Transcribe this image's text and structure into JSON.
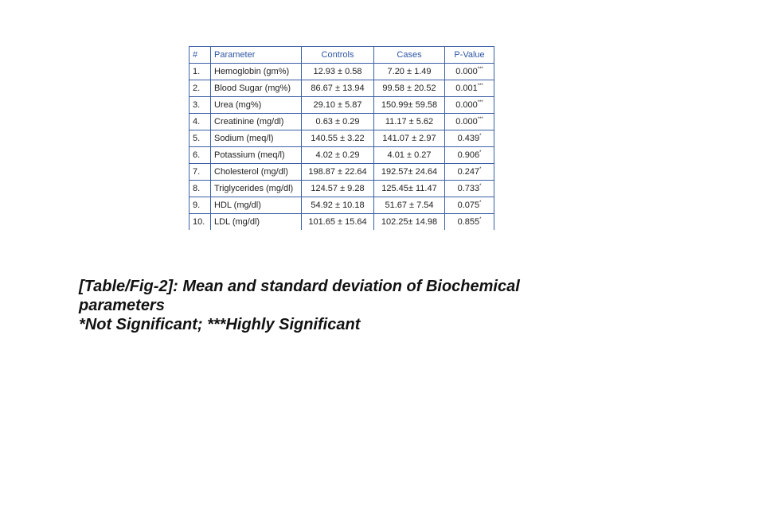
{
  "table": {
    "headers": [
      "#",
      "Parameter",
      "Controls",
      "Cases",
      "P-Value"
    ],
    "rows": [
      {
        "n": "1.",
        "param": "Hemoglobin (gm%)",
        "controls": "12.93 ± 0.58",
        "cases": "7.20 ± 1.49",
        "p": "0.000",
        "sig": "***"
      },
      {
        "n": "2.",
        "param": "Blood Sugar (mg%)",
        "controls": "86.67 ± 13.94",
        "cases": "99.58 ± 20.52",
        "p": "0.001",
        "sig": "***"
      },
      {
        "n": "3.",
        "param": "Urea (mg%)",
        "controls": "29.10 ± 5.87",
        "cases": "150.99± 59.58",
        "p": "0.000",
        "sig": "***"
      },
      {
        "n": "4.",
        "param": "Creatinine (mg/dl)",
        "controls": "0.63 ± 0.29",
        "cases": "11.17 ± 5.62",
        "p": "0.000",
        "sig": "***"
      },
      {
        "n": "5.",
        "param": "Sodium (meq/l)",
        "controls": "140.55 ± 3.22",
        "cases": "141.07 ± 2.97",
        "p": "0.439",
        "sig": "*"
      },
      {
        "n": "6.",
        "param": "Potassium (meq/l)",
        "controls": "4.02 ± 0.29",
        "cases": "4.01 ± 0.27",
        "p": "0.906",
        "sig": "*"
      },
      {
        "n": "7.",
        "param": "Cholesterol (mg/dl)",
        "controls": "198.87 ± 22.64",
        "cases": "192.57± 24.64",
        "p": "0.247",
        "sig": "*"
      },
      {
        "n": "8.",
        "param": "Triglycerides (mg/dl)",
        "controls": "124.57 ± 9.28",
        "cases": "125.45± 11.47",
        "p": "0.733",
        "sig": "*"
      },
      {
        "n": "9.",
        "param": "HDL (mg/dl)",
        "controls": "54.92 ± 10.18",
        "cases": "51.67 ± 7.54",
        "p": "0.075",
        "sig": "*"
      },
      {
        "n": "10.",
        "param": "LDL (mg/dl)",
        "controls": "101.65 ± 15.64",
        "cases": "102.25± 14.98",
        "p": "0.855",
        "sig": "*"
      }
    ]
  },
  "caption": {
    "line1": "[Table/Fig-2]: Mean and standard deviation of Biochemical parameters",
    "line2": "*Not Significant; ***Highly Significant"
  },
  "colors": {
    "border": "#3b5ea6",
    "header_text": "#2f56a5"
  }
}
